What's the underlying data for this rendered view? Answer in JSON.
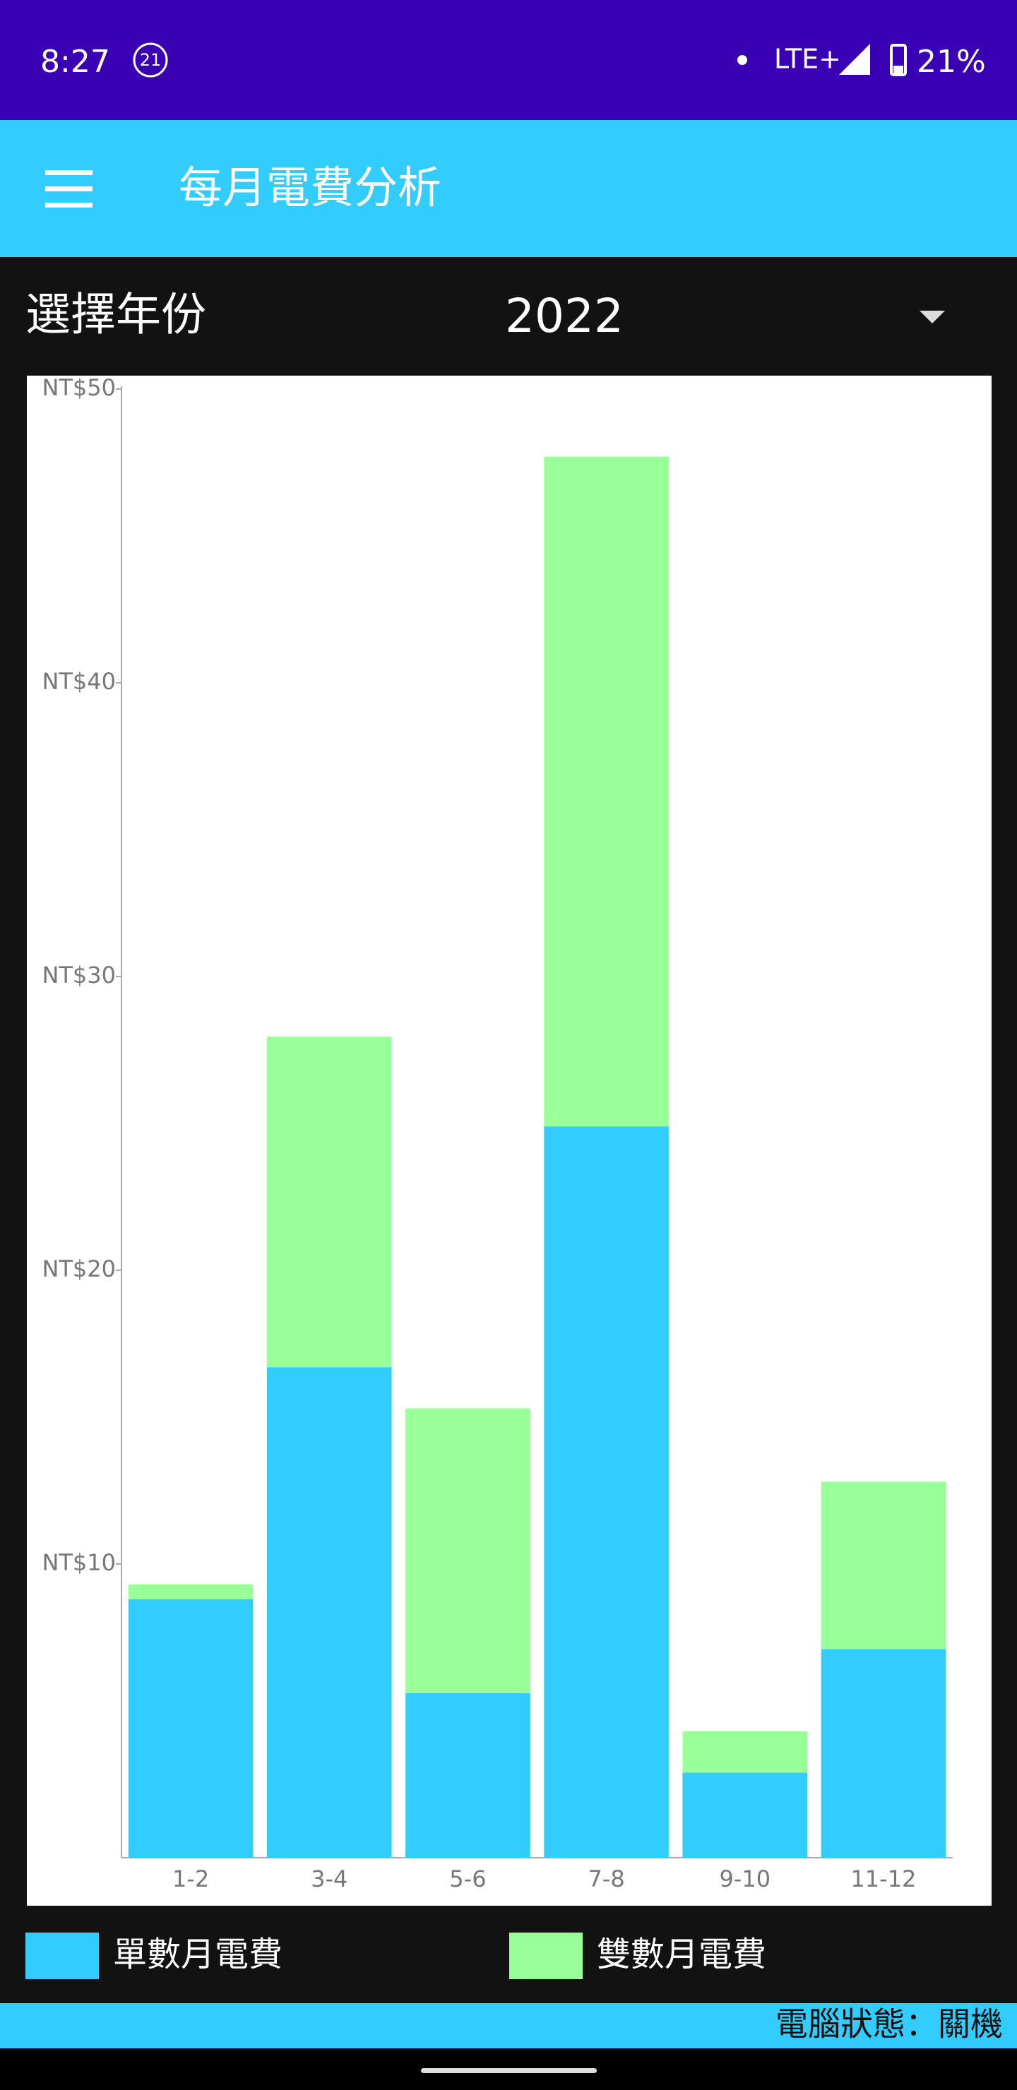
{
  "status_bar": {
    "time": "8:27",
    "badge": "21",
    "network": "LTE+",
    "battery": "21%"
  },
  "app_bar": {
    "title": "每月電費分析"
  },
  "year_selector": {
    "label": "選擇年份",
    "value": "2022"
  },
  "chart_data": {
    "type": "stacked-bar",
    "categories": [
      "1-2",
      "3-4",
      "5-6",
      "7-8",
      "9-10",
      "11-12"
    ],
    "series": [
      {
        "name": "單數月電費",
        "color": "#33ccff",
        "values": [
          8.8,
          16.7,
          5.6,
          24.9,
          2.9,
          7.1
        ]
      },
      {
        "name": "雙數月電費",
        "color": "#99ff99",
        "values": [
          0.5,
          11.25,
          9.7,
          22.8,
          1.4,
          5.7
        ]
      }
    ],
    "ylim": [
      0,
      50
    ],
    "yticks": [
      {
        "value": 10,
        "label": "NT$10"
      },
      {
        "value": 20,
        "label": "NT$20"
      },
      {
        "value": 30,
        "label": "NT$30"
      },
      {
        "value": 40,
        "label": "NT$40"
      },
      {
        "value": 50,
        "label": "NT$50"
      }
    ]
  },
  "footer": {
    "status": "電腦狀態：關機"
  }
}
